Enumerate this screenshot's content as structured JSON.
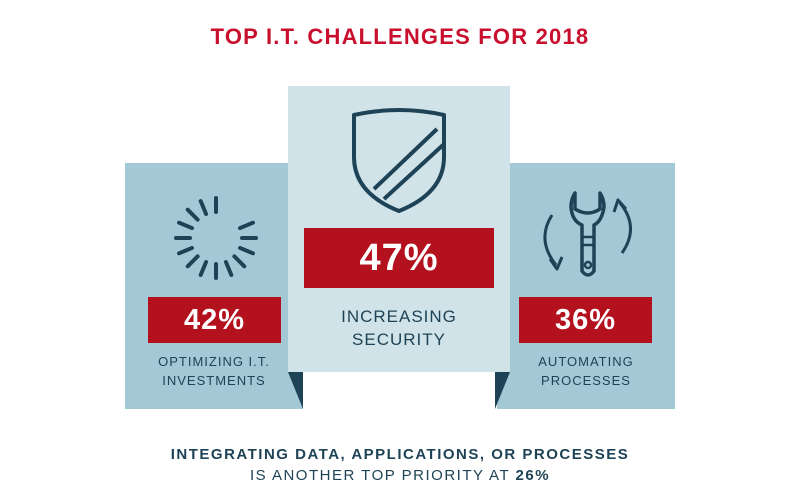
{
  "title": "TOP I.T. CHALLENGES FOR 2018",
  "colors": {
    "accent_red": "#c8102e",
    "bar_red": "#b3111d",
    "navy": "#1f4356",
    "panel_blue": "#a3c9d6",
    "panel_light": "#cfe3e9"
  },
  "challenges": [
    {
      "icon": "loading-spinner-icon",
      "percent": "42%",
      "label_line1": "OPTIMIZING I.T.",
      "label_line2": "INVESTMENTS"
    },
    {
      "icon": "shield-icon",
      "percent": "47%",
      "label_line1": "INCREASING",
      "label_line2": "SECURITY"
    },
    {
      "icon": "wrench-cycle-icon",
      "percent": "36%",
      "label_line1": "AUTOMATING",
      "label_line2": "PROCESSES"
    }
  ],
  "footer": {
    "line1": "INTEGRATING DATA, APPLICATIONS, OR PROCESSES",
    "line2": "IS ANOTHER TOP PRIORITY AT",
    "value": "26%"
  }
}
